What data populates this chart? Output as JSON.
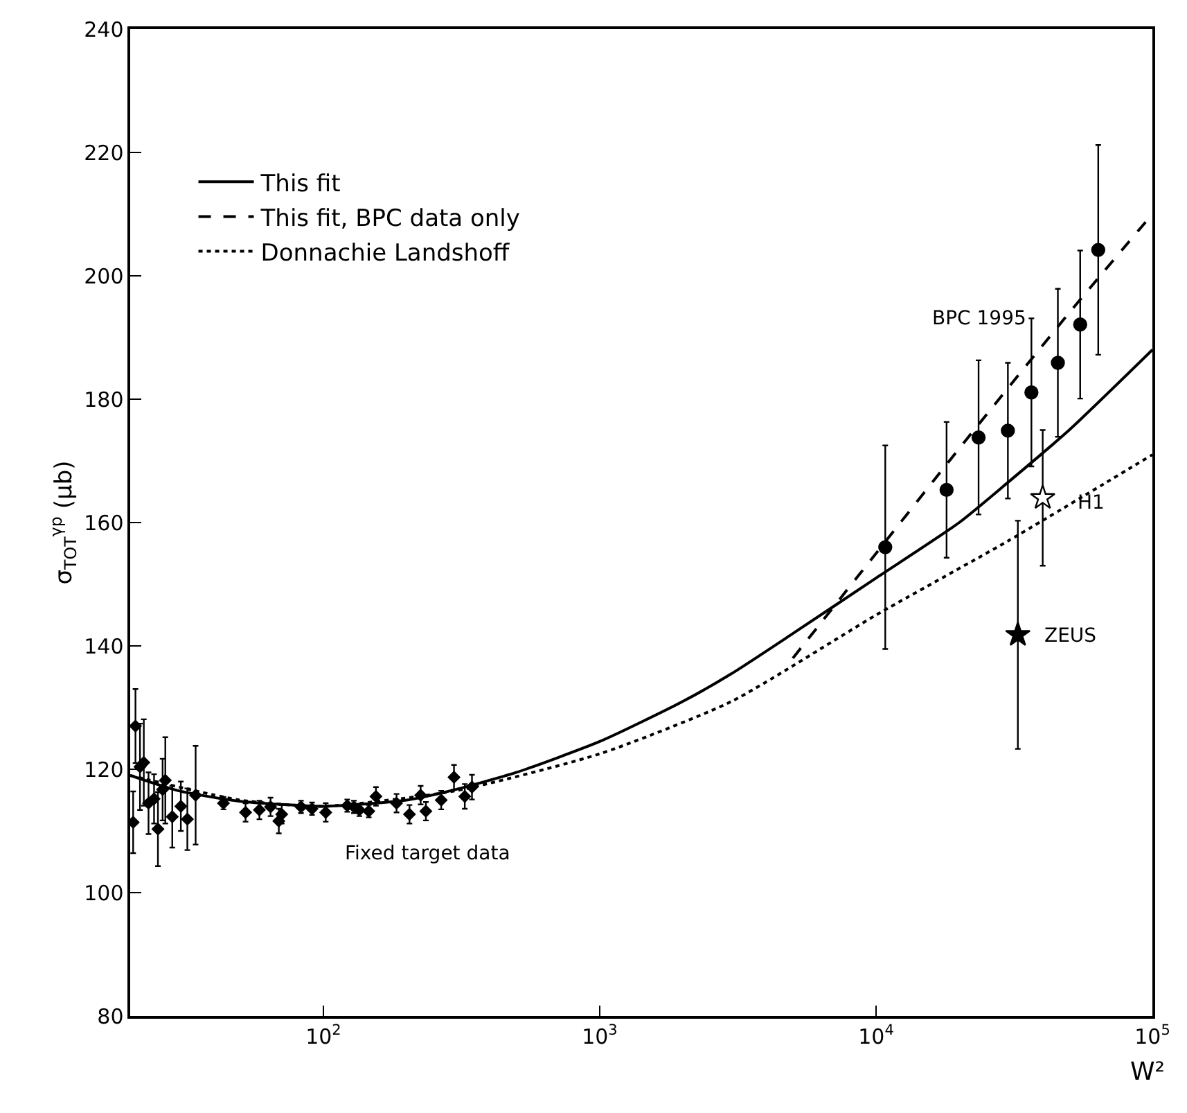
{
  "chart_data": {
    "type": "scatter",
    "xlabel": "W²",
    "ylabel": "σ$_{TOT}$$^{γp}$ (μb)",
    "log": "x",
    "xlim": [
      20,
      100000
    ],
    "ylim": [
      80,
      240
    ],
    "xticks": [
      {
        "value": 100,
        "label": "10$^{2}$"
      },
      {
        "value": 1000,
        "label": "10$^{3}$"
      },
      {
        "value": 10000,
        "label": "10$^{4}$"
      },
      {
        "value": 100000,
        "label": "10$^{5}$"
      }
    ],
    "yticks": [
      80,
      100,
      120,
      140,
      160,
      180,
      200,
      220,
      240
    ],
    "legend": "top left",
    "series": [
      {
        "name": "This fit",
        "type": "line",
        "line_style": "solid",
        "color": "#000000",
        "x": [
          20,
          30,
          50,
          100,
          200,
          300,
          500,
          1000,
          2000,
          3000,
          5000,
          10000,
          20000,
          30000,
          50000,
          100000
        ],
        "values": [
          119,
          116.5,
          114.8,
          114,
          115,
          116.7,
          119.5,
          124.5,
          131,
          135.5,
          142,
          151,
          160,
          166.5,
          175,
          188
        ]
      },
      {
        "name": "This fit, BPC data only",
        "type": "line",
        "line_style": "dashed",
        "color": "#000000",
        "x": [
          5000,
          10000,
          20000,
          50000,
          100000
        ],
        "values": [
          138,
          155,
          172,
          194,
          210
        ]
      },
      {
        "name": "Donnachie Landshoff",
        "type": "line",
        "line_style": "dotted",
        "color": "#000000",
        "x": [
          20,
          50,
          100,
          300,
          1000,
          3000,
          10000,
          30000,
          100000
        ],
        "values": [
          119,
          115,
          114,
          116.5,
          122.5,
          131,
          145,
          157,
          171
        ]
      },
      {
        "marker": "diamond",
        "color": "#000000",
        "x": [
          20.5,
          20.9,
          21.7,
          22.4,
          23.3,
          24.4,
          25.2,
          26.2,
          26.8,
          28.4,
          30.5,
          32.2,
          34.5,
          43.5,
          52.3,
          58.7,
          64.4,
          69,
          70.7,
          83,
          91,
          102,
          122,
          129,
          135,
          146,
          155,
          184,
          205,
          225,
          235,
          267,
          297,
          325,
          345
        ],
        "values": [
          111.4,
          127,
          120.4,
          121.1,
          114.5,
          115.2,
          110.3,
          116.7,
          118.2,
          112.3,
          114,
          111.9,
          115.8,
          114.5,
          113,
          113.4,
          113.9,
          111.6,
          112.7,
          113.9,
          113.6,
          113,
          114.1,
          113.9,
          113.4,
          113.2,
          115.6,
          114.5,
          112.7,
          115.8,
          113.2,
          115,
          118.7,
          115.6,
          117.1
        ],
        "errors": [
          5,
          6,
          7,
          7,
          5,
          4,
          6,
          5,
          7,
          5,
          4,
          5,
          8,
          1,
          1.5,
          1.5,
          1.5,
          2,
          1.5,
          1,
          1,
          1.5,
          1,
          1,
          1,
          1,
          1.5,
          1.5,
          1.5,
          1.5,
          1.5,
          1.5,
          2,
          2,
          2
        ]
      },
      {
        "marker": "circle",
        "color": "#000000",
        "x": [
          10800,
          18000,
          23500,
          30000,
          36500,
          45500,
          54800,
          63700
        ],
        "values": [
          156,
          165.3,
          173.8,
          174.9,
          181.1,
          185.9,
          192.1,
          204.2
        ],
        "errors": [
          16.5,
          11,
          12.5,
          11,
          12,
          12,
          12,
          17
        ]
      },
      {
        "marker": "star",
        "color": "#ffffff",
        "x": [
          40100
        ],
        "values": [
          164
        ],
        "errors": [
          11
        ]
      },
      {
        "marker": "star",
        "color": "#000000",
        "x": [
          32600
        ],
        "values": [
          141.8
        ],
        "errors": [
          18.5
        ]
      }
    ],
    "annotations": [
      "Fixed target data",
      "BPC 1995",
      "H1",
      "ZEUS"
    ]
  }
}
